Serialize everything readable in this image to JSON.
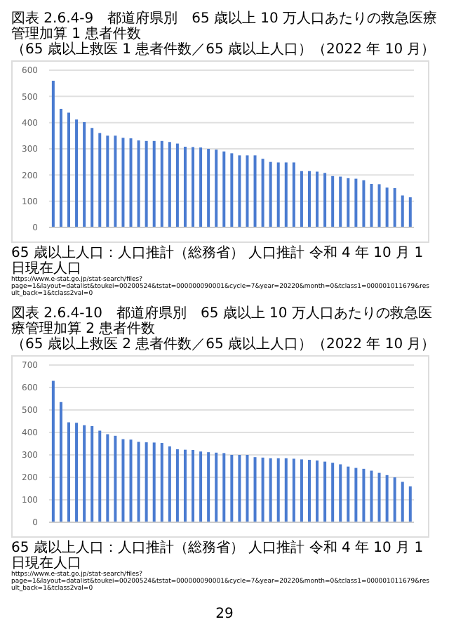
{
  "chart_data": [
    {
      "type": "bar",
      "title": "図表 2.6.4-9　都道府県別　65 歳以上 10 万人口あたりの救急医療管理加算 1 患者件数",
      "subtitle": "（65 歳以上救医 1 患者件数／65 歳以上人口）（2022 年 10 月）",
      "categories": [
        null,
        null,
        null,
        null,
        null,
        null,
        null,
        null,
        null,
        null,
        null,
        null,
        null,
        null,
        null,
        null,
        null,
        null,
        null,
        null,
        null,
        null,
        null,
        null,
        null,
        null,
        null,
        null,
        null,
        null,
        null,
        null,
        null,
        null,
        null,
        null,
        null,
        null,
        null,
        null,
        null,
        null,
        null,
        null,
        null,
        null,
        null
      ],
      "values": [
        560,
        453,
        438,
        412,
        402,
        380,
        360,
        350,
        350,
        342,
        340,
        332,
        330,
        330,
        330,
        326,
        320,
        308,
        307,
        305,
        300,
        297,
        290,
        283,
        275,
        275,
        275,
        262,
        250,
        248,
        248,
        248,
        215,
        215,
        213,
        208,
        196,
        194,
        188,
        186,
        180,
        166,
        165,
        152,
        150,
        122,
        115
      ],
      "color": "#4a7bd0",
      "ylim": [
        0,
        600
      ],
      "yticks": [
        0,
        100,
        200,
        300,
        400,
        500,
        600
      ],
      "grid": "y",
      "annotations": [
        "65 歳以上人口：人口推計（総務省） 人口推計 令和 4 年 10 月 1 日現在人口 https://www.e-stat.go.jp/stat-search/files?page=1&layout=datalist&toukei=00200524&tstat=000000090001&cycle=7&year=20220&month=0&tclass1=000001011679&result_back=1&tclass2val=0"
      ]
    },
    {
      "type": "bar",
      "title": "図表 2.6.4-10　都道府県別　65 歳以上 10 万人口あたりの救急医療管理加算 2 患者件数",
      "subtitle": "（65 歳以上救医 2 患者件数／65 歳以上人口）（2022 年 10 月）",
      "categories": [
        null,
        null,
        null,
        null,
        null,
        null,
        null,
        null,
        null,
        null,
        null,
        null,
        null,
        null,
        null,
        null,
        null,
        null,
        null,
        null,
        null,
        null,
        null,
        null,
        null,
        null,
        null,
        null,
        null,
        null,
        null,
        null,
        null,
        null,
        null,
        null,
        null,
        null,
        null,
        null,
        null,
        null,
        null,
        null,
        null,
        null,
        null
      ],
      "values": [
        630,
        535,
        445,
        443,
        432,
        428,
        408,
        392,
        385,
        370,
        368,
        358,
        356,
        355,
        353,
        338,
        325,
        323,
        322,
        315,
        312,
        310,
        308,
        300,
        300,
        300,
        290,
        288,
        285,
        285,
        285,
        283,
        280,
        278,
        275,
        270,
        265,
        258,
        248,
        242,
        238,
        230,
        220,
        210,
        200,
        180,
        160
      ],
      "color": "#4a7bd0",
      "ylim": [
        0,
        700
      ],
      "yticks": [
        0,
        100,
        200,
        300,
        400,
        500,
        600,
        700
      ],
      "grid": "y",
      "annotations": [
        "65 歳以上人口：人口推計（総務省） 人口推計 令和 4 年 10 月 1 日現在人口 https://www.e-stat.go.jp/stat-search/files?page=1&layout=datalist&toukei=00200524&tstat=000000090001&cycle=7&year=20220&month=0&tclass1=000001011679&result_back=1&tclass2val=0",
        "29"
      ]
    }
  ]
}
